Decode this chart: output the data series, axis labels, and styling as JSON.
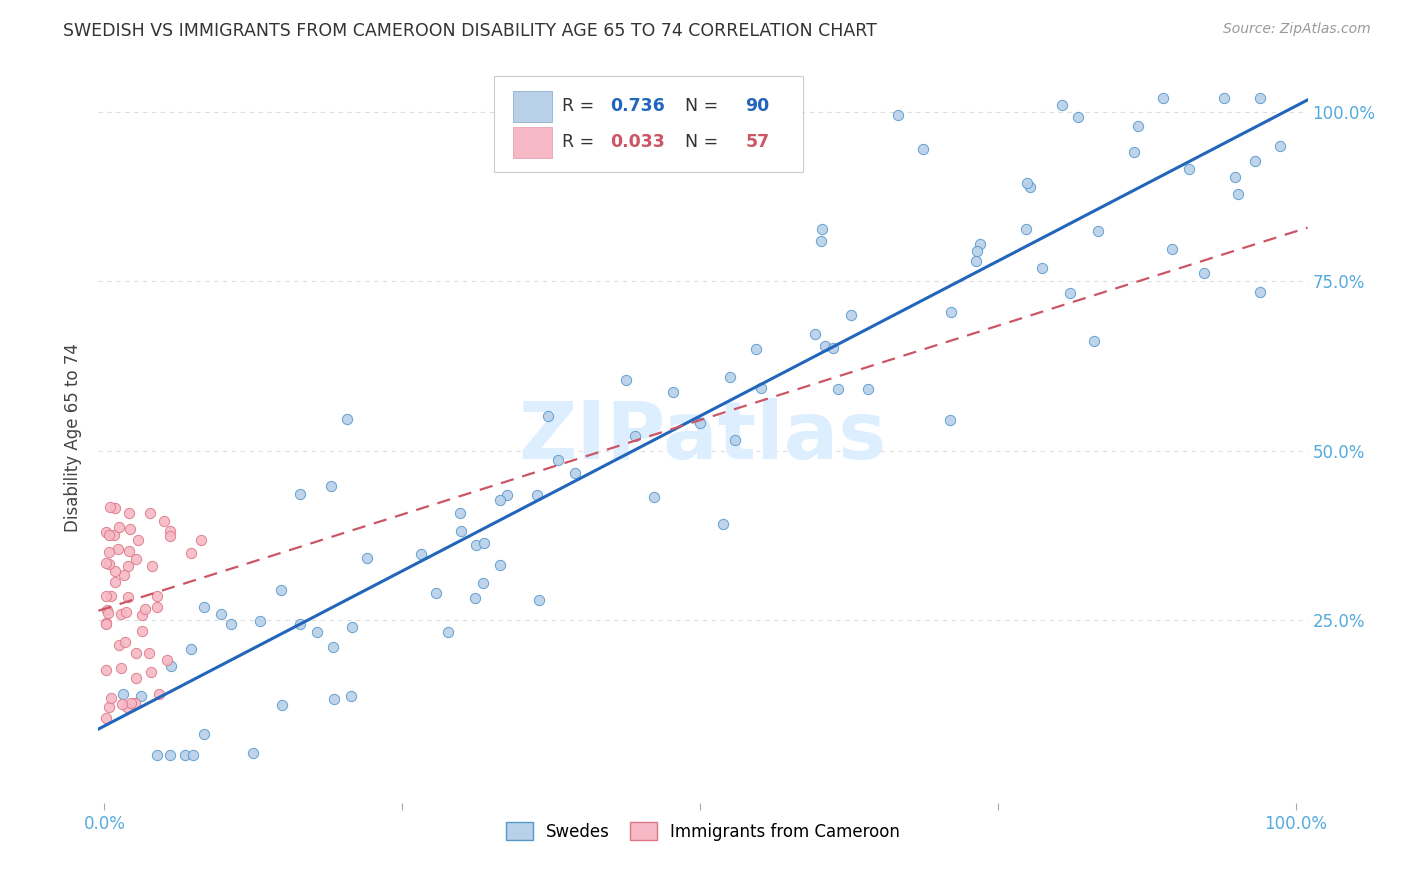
{
  "title": "SWEDISH VS IMMIGRANTS FROM CAMEROON DISABILITY AGE 65 TO 74 CORRELATION CHART",
  "source": "Source: ZipAtlas.com",
  "ylabel": "Disability Age 65 to 74",
  "watermark": "ZIPatlas",
  "swedes_r": 0.736,
  "swedes_n": 90,
  "cameroon_r": 0.033,
  "cameroon_n": 57,
  "swedes_color": "#b8d0e8",
  "cameroon_color": "#f5b8c4",
  "swedes_line_color": "#2266bb",
  "cameroon_line_color": "#cc5566",
  "swedes_edge_color": "#5599cc",
  "cameroon_edge_color": "#dd7788",
  "bg_color": "#ffffff",
  "grid_color": "#dddddd",
  "title_color": "#333333",
  "source_color": "#999999",
  "axis_label_color": "#555555",
  "tick_color": "#55aadd",
  "ylabel_color": "#444444",
  "watermark_color": "#ddeeff"
}
